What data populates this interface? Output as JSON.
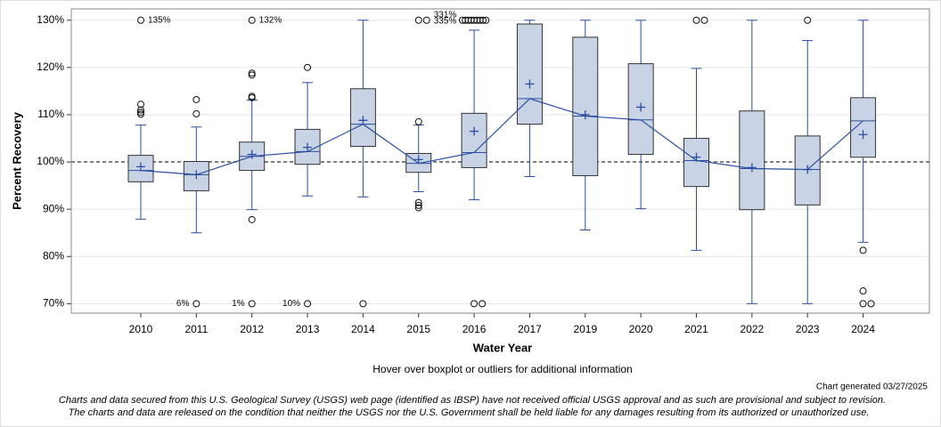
{
  "chart_data": {
    "type": "box",
    "x_label": "Water Year",
    "y_label": "Percent Recovery",
    "ylim": [
      68,
      132.4
    ],
    "yticks": [
      {
        "value": 70,
        "label": "70%"
      },
      {
        "value": 80,
        "label": "80%"
      },
      {
        "value": 90,
        "label": "90%"
      },
      {
        "value": 100,
        "label": "100%"
      },
      {
        "value": 110,
        "label": "110%"
      },
      {
        "value": 120,
        "label": "120%"
      },
      {
        "value": 130,
        "label": "130%"
      }
    ],
    "reference_line": 100,
    "grid": true,
    "box_color": "#c9d3e6",
    "line_color": "#2b4f9e",
    "categories": [
      "2010",
      "2011",
      "2012",
      "2013",
      "2014",
      "2015",
      "2016",
      "2017",
      "2019",
      "2020",
      "2021",
      "2022",
      "2023",
      "2024"
    ],
    "boxes": [
      {
        "whisker_low": 87.9,
        "q1": 95.8,
        "median": 98.2,
        "q3": 101.4,
        "whisker_high": 107.8,
        "mean": 99.0,
        "outliers": [
          112.2,
          111.0,
          110.5,
          110.1,
          130
        ],
        "high_notes": [
          "135%"
        ]
      },
      {
        "whisker_low": 85.0,
        "q1": 93.9,
        "median": 97.3,
        "q3": 100.1,
        "whisker_high": 107.4,
        "mean": 97.3,
        "outliers": [
          113.2,
          110.2,
          70
        ],
        "low_notes": [
          "6%"
        ]
      },
      {
        "whisker_low": 89.9,
        "q1": 98.2,
        "median": 101.2,
        "q3": 104.2,
        "whisker_high": 113.1,
        "mean": 101.6,
        "outliers": [
          118.8,
          118.4,
          113.9,
          113.6,
          87.8,
          130,
          70
        ],
        "high_notes": [
          "132%"
        ],
        "low_notes": [
          "1%"
        ]
      },
      {
        "whisker_low": 92.8,
        "q1": 99.5,
        "median": 102.2,
        "q3": 106.9,
        "whisker_high": 116.8,
        "mean": 103.1,
        "outliers": [
          120,
          70
        ],
        "low_notes": [
          "10%"
        ]
      },
      {
        "whisker_low": 92.6,
        "q1": 103.3,
        "median": 108.0,
        "q3": 115.5,
        "whisker_high": 130,
        "mean": 108.8,
        "outliers": [
          70
        ]
      },
      {
        "whisker_low": 93.7,
        "q1": 97.8,
        "median": 99.7,
        "q3": 101.8,
        "whisker_high": 107.8,
        "mean": 100.5,
        "outliers": [
          108.5,
          91.4,
          90.8,
          90.3,
          130,
          130
        ],
        "high_notes": [
          "331%",
          "335%"
        ]
      },
      {
        "whisker_low": 92.0,
        "q1": 98.8,
        "median": 102.0,
        "q3": 110.3,
        "whisker_high": 127.9,
        "mean": 106.5,
        "outliers": [
          130,
          130,
          130,
          130,
          130,
          130,
          130,
          130,
          130,
          70,
          70
        ]
      },
      {
        "whisker_low": 96.9,
        "q1": 108.0,
        "median": 113.4,
        "q3": 129.2,
        "whisker_high": 130,
        "mean": 116.5,
        "outliers": []
      },
      {
        "whisker_low": 85.6,
        "q1": 97.1,
        "median": 109.7,
        "q3": 126.4,
        "whisker_high": 130,
        "mean": 110.0,
        "outliers": []
      },
      {
        "whisker_low": 90.1,
        "q1": 101.6,
        "median": 108.9,
        "q3": 120.8,
        "whisker_high": 130,
        "mean": 111.6,
        "outliers": []
      },
      {
        "whisker_low": 81.3,
        "q1": 94.8,
        "median": 100.3,
        "q3": 105.0,
        "whisker_high": 119.8,
        "mean": 101.0,
        "outliers": [
          130,
          130
        ]
      },
      {
        "whisker_low": 70,
        "q1": 89.9,
        "median": 98.6,
        "q3": 110.8,
        "whisker_high": 130,
        "mean": 98.8,
        "outliers": []
      },
      {
        "whisker_low": 70,
        "q1": 90.9,
        "median": 98.4,
        "q3": 105.5,
        "whisker_high": 125.7,
        "mean": 98.4,
        "outliers": [
          130
        ]
      },
      {
        "whisker_low": 83.0,
        "q1": 101.0,
        "median": 108.7,
        "q3": 113.6,
        "whisker_high": 130,
        "mean": 105.8,
        "outliers": [
          81.3,
          72.7,
          70,
          70
        ]
      }
    ],
    "hover_note": "Hover over boxplot or outliers for additional information",
    "generated": "Chart generated 03/27/2025",
    "disclaimer": [
      "Charts and data secured from this U.S. Geological Survey (USGS) web page (identified as IBSP) have not received official USGS approval and as such are provisional and subject to revision.",
      "The charts and data are released on the condition that neither the USGS nor the U.S. Government shall be held liable for any damages resulting from its authorized or unauthorized use."
    ]
  }
}
